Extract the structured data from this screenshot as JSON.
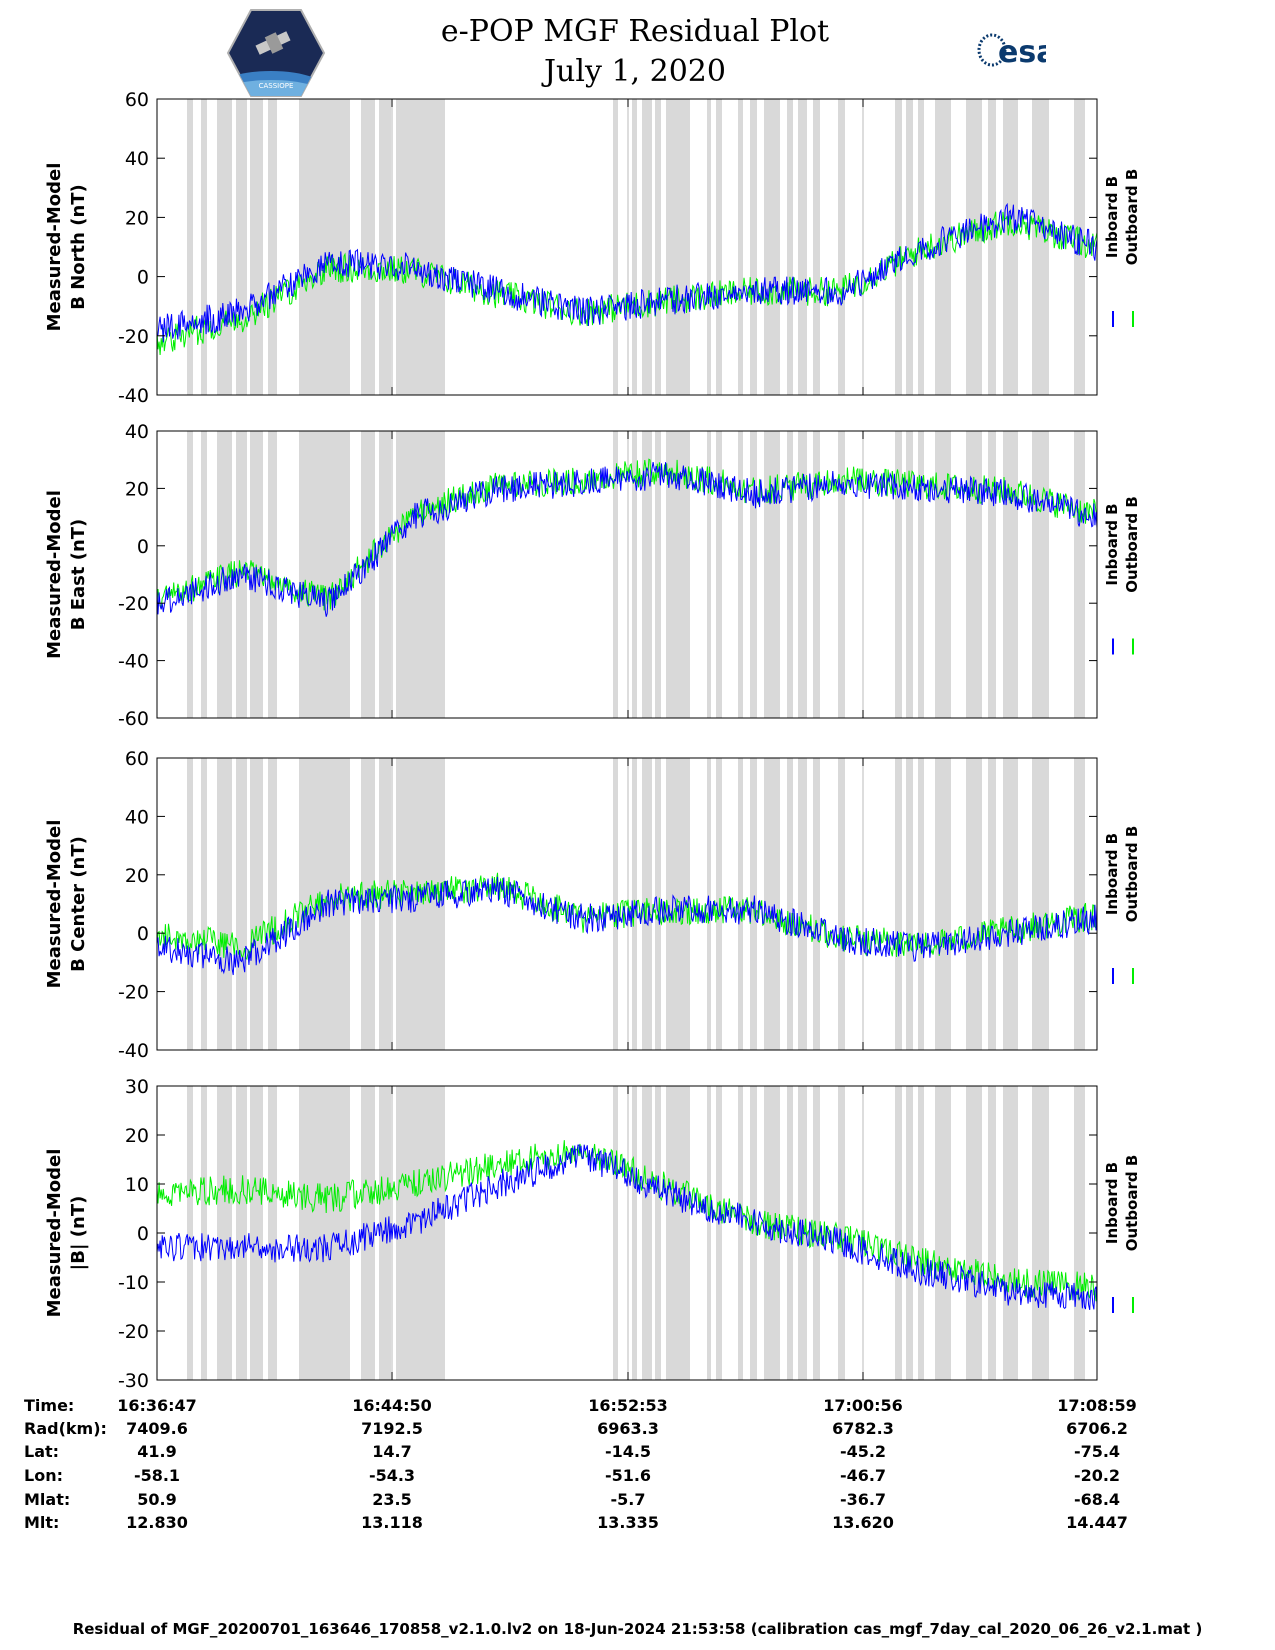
{
  "header": {
    "title_line1": "e-POP MGF Residual Plot",
    "title_line2": "July 1, 2020",
    "logo_left_text": "CASSIOPE",
    "logo_right_text": "esa"
  },
  "colors": {
    "inboard": "#0000ff",
    "outboard": "#00ee00",
    "shade": "#d9d9d9"
  },
  "legend": {
    "inboard": "Inboard B",
    "outboard": "Outboard B"
  },
  "chart_data": [
    {
      "type": "line",
      "ylabel": "Measured-Model\nB North (nT)",
      "ylim": [
        -40,
        60
      ],
      "yticks": [
        -40,
        -20,
        0,
        20,
        40,
        60
      ],
      "x": [
        0,
        3,
        6,
        9,
        12,
        15,
        18,
        21,
        24,
        27,
        30,
        32
      ],
      "series": [
        {
          "name": "Inboard B",
          "values": [
            -18,
            -12,
            5,
            3,
            -5,
            -12,
            -8,
            -5,
            -5,
            10,
            20,
            10
          ]
        },
        {
          "name": "Outboard B",
          "values": [
            -22,
            -14,
            3,
            2,
            -6,
            -12,
            -8,
            -5,
            -5,
            10,
            19,
            10
          ]
        }
      ]
    },
    {
      "type": "line",
      "ylabel": "Measured-Model\nB East (nT)",
      "ylim": [
        -60,
        40
      ],
      "yticks": [
        -60,
        -40,
        -20,
        0,
        20,
        40
      ],
      "x": [
        0,
        3,
        6,
        9,
        12,
        15,
        18,
        21,
        24,
        27,
        30,
        32
      ],
      "series": [
        {
          "name": "Inboard B",
          "values": [
            -20,
            -10,
            -20,
            10,
            20,
            22,
            25,
            18,
            22,
            20,
            18,
            10
          ]
        },
        {
          "name": "Outboard B",
          "values": [
            -19,
            -9,
            -19,
            11,
            21,
            23,
            26,
            19,
            23,
            21,
            19,
            11
          ]
        }
      ]
    },
    {
      "type": "line",
      "ylabel": "Measured-Model\nB Center (nT)",
      "ylim": [
        -40,
        60
      ],
      "yticks": [
        -40,
        -20,
        0,
        20,
        40,
        60
      ],
      "x": [
        0,
        3,
        6,
        9,
        12,
        15,
        18,
        21,
        24,
        27,
        30,
        32
      ],
      "series": [
        {
          "name": "Inboard B",
          "values": [
            -5,
            -10,
            10,
            12,
            15,
            5,
            8,
            8,
            -2,
            -5,
            0,
            5
          ]
        },
        {
          "name": "Outboard B",
          "values": [
            0,
            -5,
            12,
            14,
            16,
            5,
            8,
            8,
            -2,
            -4,
            1,
            6
          ]
        }
      ]
    },
    {
      "type": "line",
      "ylabel": "Measured-Model\n|B| (nT)",
      "ylim": [
        -30,
        30
      ],
      "yticks": [
        -30,
        -20,
        -10,
        0,
        10,
        20,
        30
      ],
      "x": [
        0,
        3,
        6,
        9,
        12,
        15,
        18,
        21,
        24,
        27,
        30,
        32
      ],
      "series": [
        {
          "name": "Inboard B",
          "values": [
            -3,
            -3,
            -3,
            2,
            10,
            16,
            8,
            2,
            -2,
            -8,
            -12,
            -13
          ]
        },
        {
          "name": "Outboard B",
          "values": [
            8,
            9,
            7,
            10,
            14,
            17,
            9,
            2,
            -1,
            -6,
            -10,
            -11
          ]
        }
      ]
    }
  ],
  "time_axis": {
    "labels": [
      "Time:",
      "Rad(km):",
      "Lat:",
      "Lon:",
      "Mlat:",
      "Mlt:"
    ],
    "columns": [
      [
        "16:36:47",
        "7409.6",
        "41.9",
        "-58.1",
        "50.9",
        "12.830"
      ],
      [
        "16:44:50",
        "7192.5",
        "14.7",
        "-54.3",
        "23.5",
        "13.118"
      ],
      [
        "16:52:53",
        "6963.3",
        "-14.5",
        "-51.6",
        "-5.7",
        "13.335"
      ],
      [
        "17:00:56",
        "6782.3",
        "-45.2",
        "-46.7",
        "-36.7",
        "13.620"
      ],
      [
        "17:08:59",
        "6706.2",
        "-75.4",
        "-20.2",
        "-68.4",
        "14.447"
      ]
    ]
  },
  "footer": "Residual of MGF_20200701_163646_170858_v2.1.0.lv2 on 18-Jun-2024 21:53:58 (calibration cas_mgf_7day_cal_2020_06_26_v2.1.mat )"
}
